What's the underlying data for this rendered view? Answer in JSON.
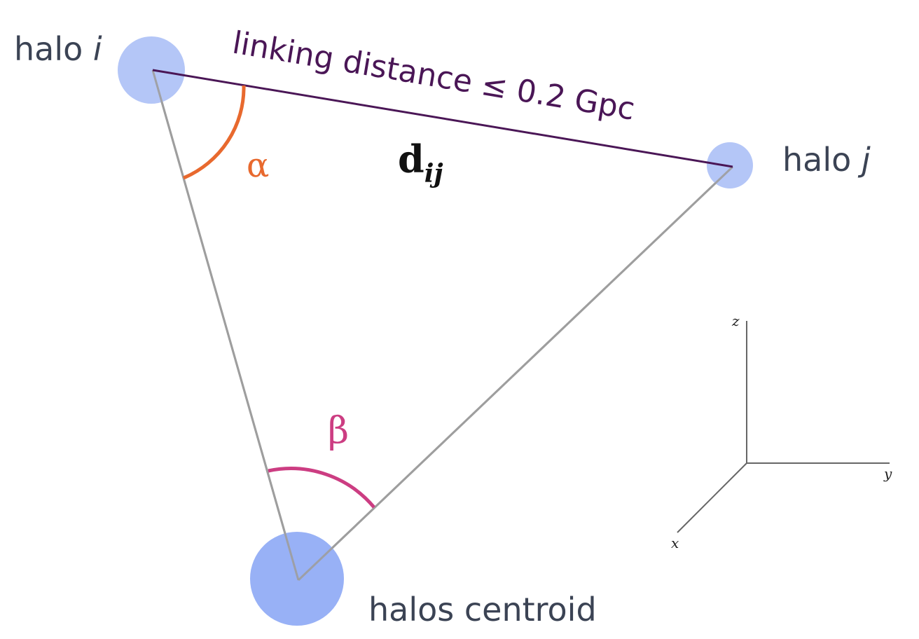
{
  "labels": {
    "halo_i": {
      "prefix": "halo ",
      "var": "i"
    },
    "halo_j": {
      "prefix": "halo ",
      "var": "j"
    },
    "centroid": "halos centroid",
    "linking": "linking distance ≤ 0.2 Gpc",
    "dij_main": "d",
    "dij_sub": "ij",
    "alpha": "α",
    "beta": "β"
  },
  "axes": {
    "x": "x",
    "y": "y",
    "z": "z"
  },
  "colors": {
    "halo_light": "#b4c6f7",
    "halo_dark": "#98b1f6",
    "gray_line": "#9e9e9e",
    "linking_line": "#4a1656",
    "alpha_arc": "#e8692e",
    "beta_arc": "#cc3d82",
    "text": "#3b4354",
    "axis": "#666666"
  }
}
